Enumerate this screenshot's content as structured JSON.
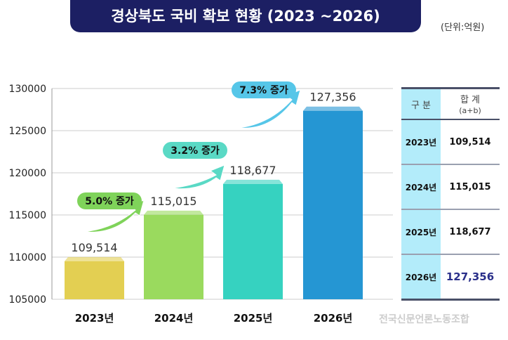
{
  "header": {
    "title": "경상북도 국비 확보 현황 (2023 ~2026)",
    "unit": "(단위:억원)"
  },
  "chart_data": {
    "type": "bar",
    "categories": [
      "2023년",
      "2024년",
      "2025년",
      "2026년"
    ],
    "values": [
      109514,
      115015,
      118677,
      127356
    ],
    "value_labels": [
      "109,514",
      "115,015",
      "118,677",
      "127,356"
    ],
    "ylim": [
      105000,
      130000
    ],
    "yticks": [
      105000,
      110000,
      115000,
      120000,
      125000,
      130000
    ],
    "grid": true,
    "bar_colors": [
      "#e3cf52",
      "#9ada5e",
      "#36d2c0",
      "#2596d3"
    ],
    "annotations": [
      {
        "label": "5.0% 증가",
        "color": "#7fd35a"
      },
      {
        "label": "3.2% 증가",
        "color": "#5ad9c5"
      },
      {
        "label": "7.3% 증가",
        "color": "#56c6e8"
      }
    ]
  },
  "table": {
    "headers": [
      "구 분",
      "합 계",
      "(a+b)"
    ],
    "rows": [
      {
        "year": "2023년",
        "total": "109,514"
      },
      {
        "year": "2024년",
        "total": "115,015"
      },
      {
        "year": "2025년",
        "total": "118,677"
      },
      {
        "year": "2026년",
        "total": "127,356",
        "highlight": "#2a2f8a"
      }
    ]
  },
  "watermark": "전국신문언론노동조합"
}
